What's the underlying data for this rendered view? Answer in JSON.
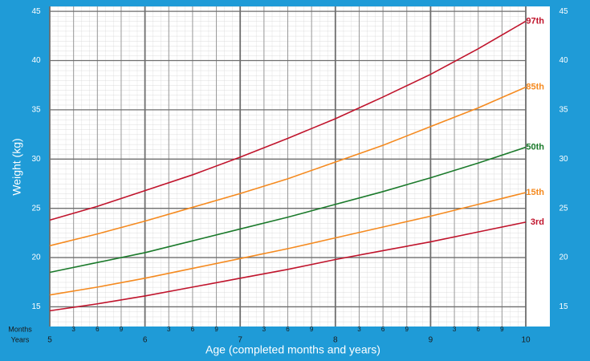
{
  "chart_data": {
    "type": "line",
    "x_label": "Age (completed months and years)",
    "y_label": "Weight (kg)",
    "row_labels": [
      "Months",
      "Years"
    ],
    "xlim": [
      5,
      10
    ],
    "ylim": [
      13,
      45.5
    ],
    "xticks": [
      5,
      6,
      7,
      8,
      9,
      10
    ],
    "month_ticks": [
      {
        "value": 5.25,
        "label": "3"
      },
      {
        "value": 5.5,
        "label": "6"
      },
      {
        "value": 5.75,
        "label": "9"
      },
      {
        "value": 6.25,
        "label": "3"
      },
      {
        "value": 6.5,
        "label": "6"
      },
      {
        "value": 6.75,
        "label": "9"
      },
      {
        "value": 7.25,
        "label": "3"
      },
      {
        "value": 7.5,
        "label": "6"
      },
      {
        "value": 7.75,
        "label": "9"
      },
      {
        "value": 8.25,
        "label": "3"
      },
      {
        "value": 8.5,
        "label": "6"
      },
      {
        "value": 8.75,
        "label": "9"
      },
      {
        "value": 9.25,
        "label": "3"
      },
      {
        "value": 9.5,
        "label": "6"
      },
      {
        "value": 9.75,
        "label": "9"
      }
    ],
    "yticks": [
      15,
      20,
      25,
      30,
      35,
      40,
      45
    ],
    "grid": true,
    "x": [
      5,
      5.5,
      6,
      6.5,
      7,
      7.5,
      8,
      8.5,
      9,
      9.5,
      10
    ],
    "series": [
      {
        "name": "97th",
        "color": "#c0142c",
        "values": [
          23.8,
          25.2,
          26.8,
          28.4,
          30.2,
          32.1,
          34.1,
          36.3,
          38.6,
          41.2,
          44.0
        ]
      },
      {
        "name": "85th",
        "color": "#f58a1f",
        "values": [
          21.2,
          22.4,
          23.7,
          25.1,
          26.5,
          28.0,
          29.7,
          31.4,
          33.3,
          35.2,
          37.3
        ]
      },
      {
        "name": "50th",
        "color": "#1b7a2b",
        "values": [
          18.5,
          19.5,
          20.5,
          21.7,
          22.9,
          24.1,
          25.4,
          26.7,
          28.1,
          29.6,
          31.2
        ]
      },
      {
        "name": "15th",
        "color": "#f58a1f",
        "values": [
          16.2,
          17.0,
          17.9,
          18.9,
          19.9,
          20.9,
          22.0,
          23.1,
          24.2,
          25.4,
          26.6
        ]
      },
      {
        "name": "3rd",
        "color": "#c0142c",
        "values": [
          14.6,
          15.3,
          16.1,
          17.0,
          17.9,
          18.8,
          19.8,
          20.7,
          21.6,
          22.6,
          23.6
        ]
      }
    ]
  }
}
